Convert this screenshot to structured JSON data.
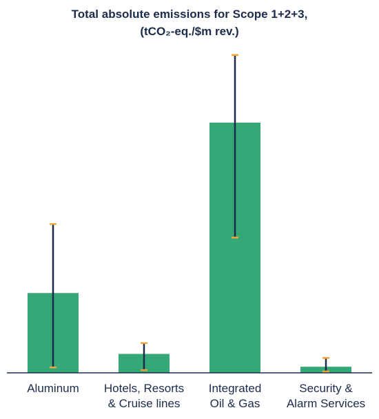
{
  "chart_data": {
    "type": "bar",
    "title_line1": "Total absolute emissions for Scope 1+2+3,",
    "title_line2": "(tCO₂-eq./$m rev.)",
    "categories": [
      [
        "Aluminum"
      ],
      [
        "Hotels, Resorts",
        "& Cruise lines"
      ],
      [
        "Integrated",
        "Oil & Gas"
      ],
      [
        "Security &",
        "Alarm Services"
      ]
    ],
    "values": [
      118,
      28,
      370,
      9
    ],
    "error_low": [
      8,
      4,
      200,
      2
    ],
    "error_high": [
      220,
      44,
      470,
      22
    ],
    "ylim": [
      0,
      480
    ],
    "grid": false,
    "colors": {
      "bar": "#34a876",
      "error_bar": "#1c2b4a",
      "cap": "#f2a33a",
      "axis": "#1c2b4a"
    }
  }
}
